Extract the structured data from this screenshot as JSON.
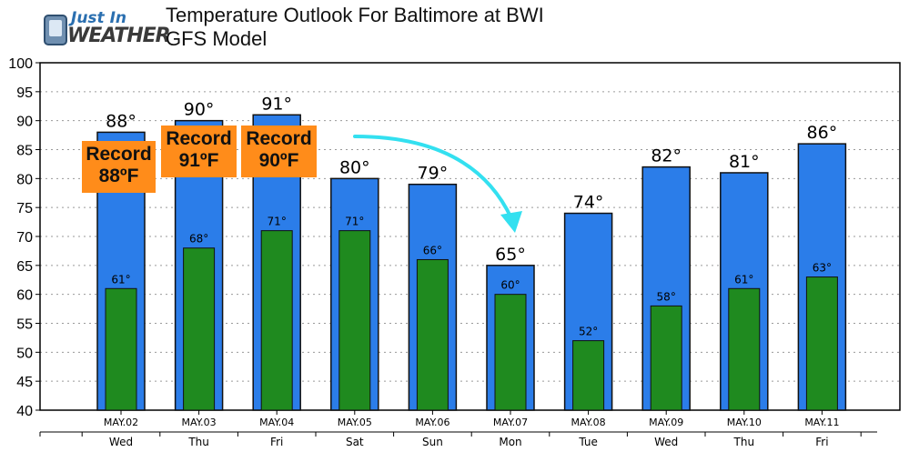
{
  "logo": {
    "line1": "Just In",
    "line2": "WEATHER"
  },
  "header": {
    "title": "Temperature Outlook For Baltimore at BWI",
    "subtitle": "GFS Model"
  },
  "callouts": [
    {
      "label": "Record",
      "value": "88ºF"
    },
    {
      "label": "Record",
      "value": "91ºF"
    },
    {
      "label": "Record",
      "value": "90ºF"
    }
  ],
  "colors": {
    "high_bar": "#2b7de9",
    "low_bar": "#1f8a1f",
    "callout": "#ff8c1a",
    "arrow": "#33e0f0"
  },
  "chart_data": {
    "type": "bar",
    "title": "Temperature Outlook For Baltimore at BWI",
    "subtitle": "GFS Model",
    "categories": [
      "MAY.02",
      "MAY.03",
      "MAY.04",
      "MAY.05",
      "MAY.06",
      "MAY.07",
      "MAY.08",
      "MAY.09",
      "MAY.10",
      "MAY.11"
    ],
    "days": [
      "Wed",
      "Thu",
      "Fri",
      "Sat",
      "Sun",
      "Mon",
      "Tue",
      "Wed",
      "Thu",
      "Fri"
    ],
    "series": [
      {
        "values": [
          88,
          90,
          91,
          80,
          79,
          65,
          74,
          82,
          81,
          86
        ],
        "labels": [
          "88°",
          "90°",
          "91°",
          "80°",
          "79°",
          "65°",
          "74°",
          "82°",
          "81°",
          "86°"
        ]
      },
      {
        "values": [
          61,
          68,
          71,
          71,
          66,
          60,
          52,
          58,
          61,
          63
        ],
        "labels": [
          "61°",
          "68°",
          "71°",
          "71°",
          "66°",
          "60°",
          "52°",
          "58°",
          "61°",
          "63°"
        ]
      }
    ],
    "ylim": [
      40,
      100
    ],
    "yticks": [
      40,
      45,
      50,
      55,
      60,
      65,
      70,
      75,
      80,
      85,
      90,
      95,
      100
    ],
    "grid": true
  }
}
